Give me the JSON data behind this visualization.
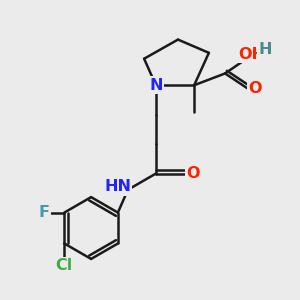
{
  "bg_color": "#ebebeb",
  "bond_color": "#1a1a1a",
  "bond_width": 1.8,
  "atom_colors": {
    "N": "#2222ff",
    "O": "#ff2200",
    "F": "#4499aa",
    "Cl": "#44aa44",
    "H": "#4a8a8a",
    "C": "#1a1a1a"
  },
  "font_size": 11.5,
  "font_size_small": 9.5
}
